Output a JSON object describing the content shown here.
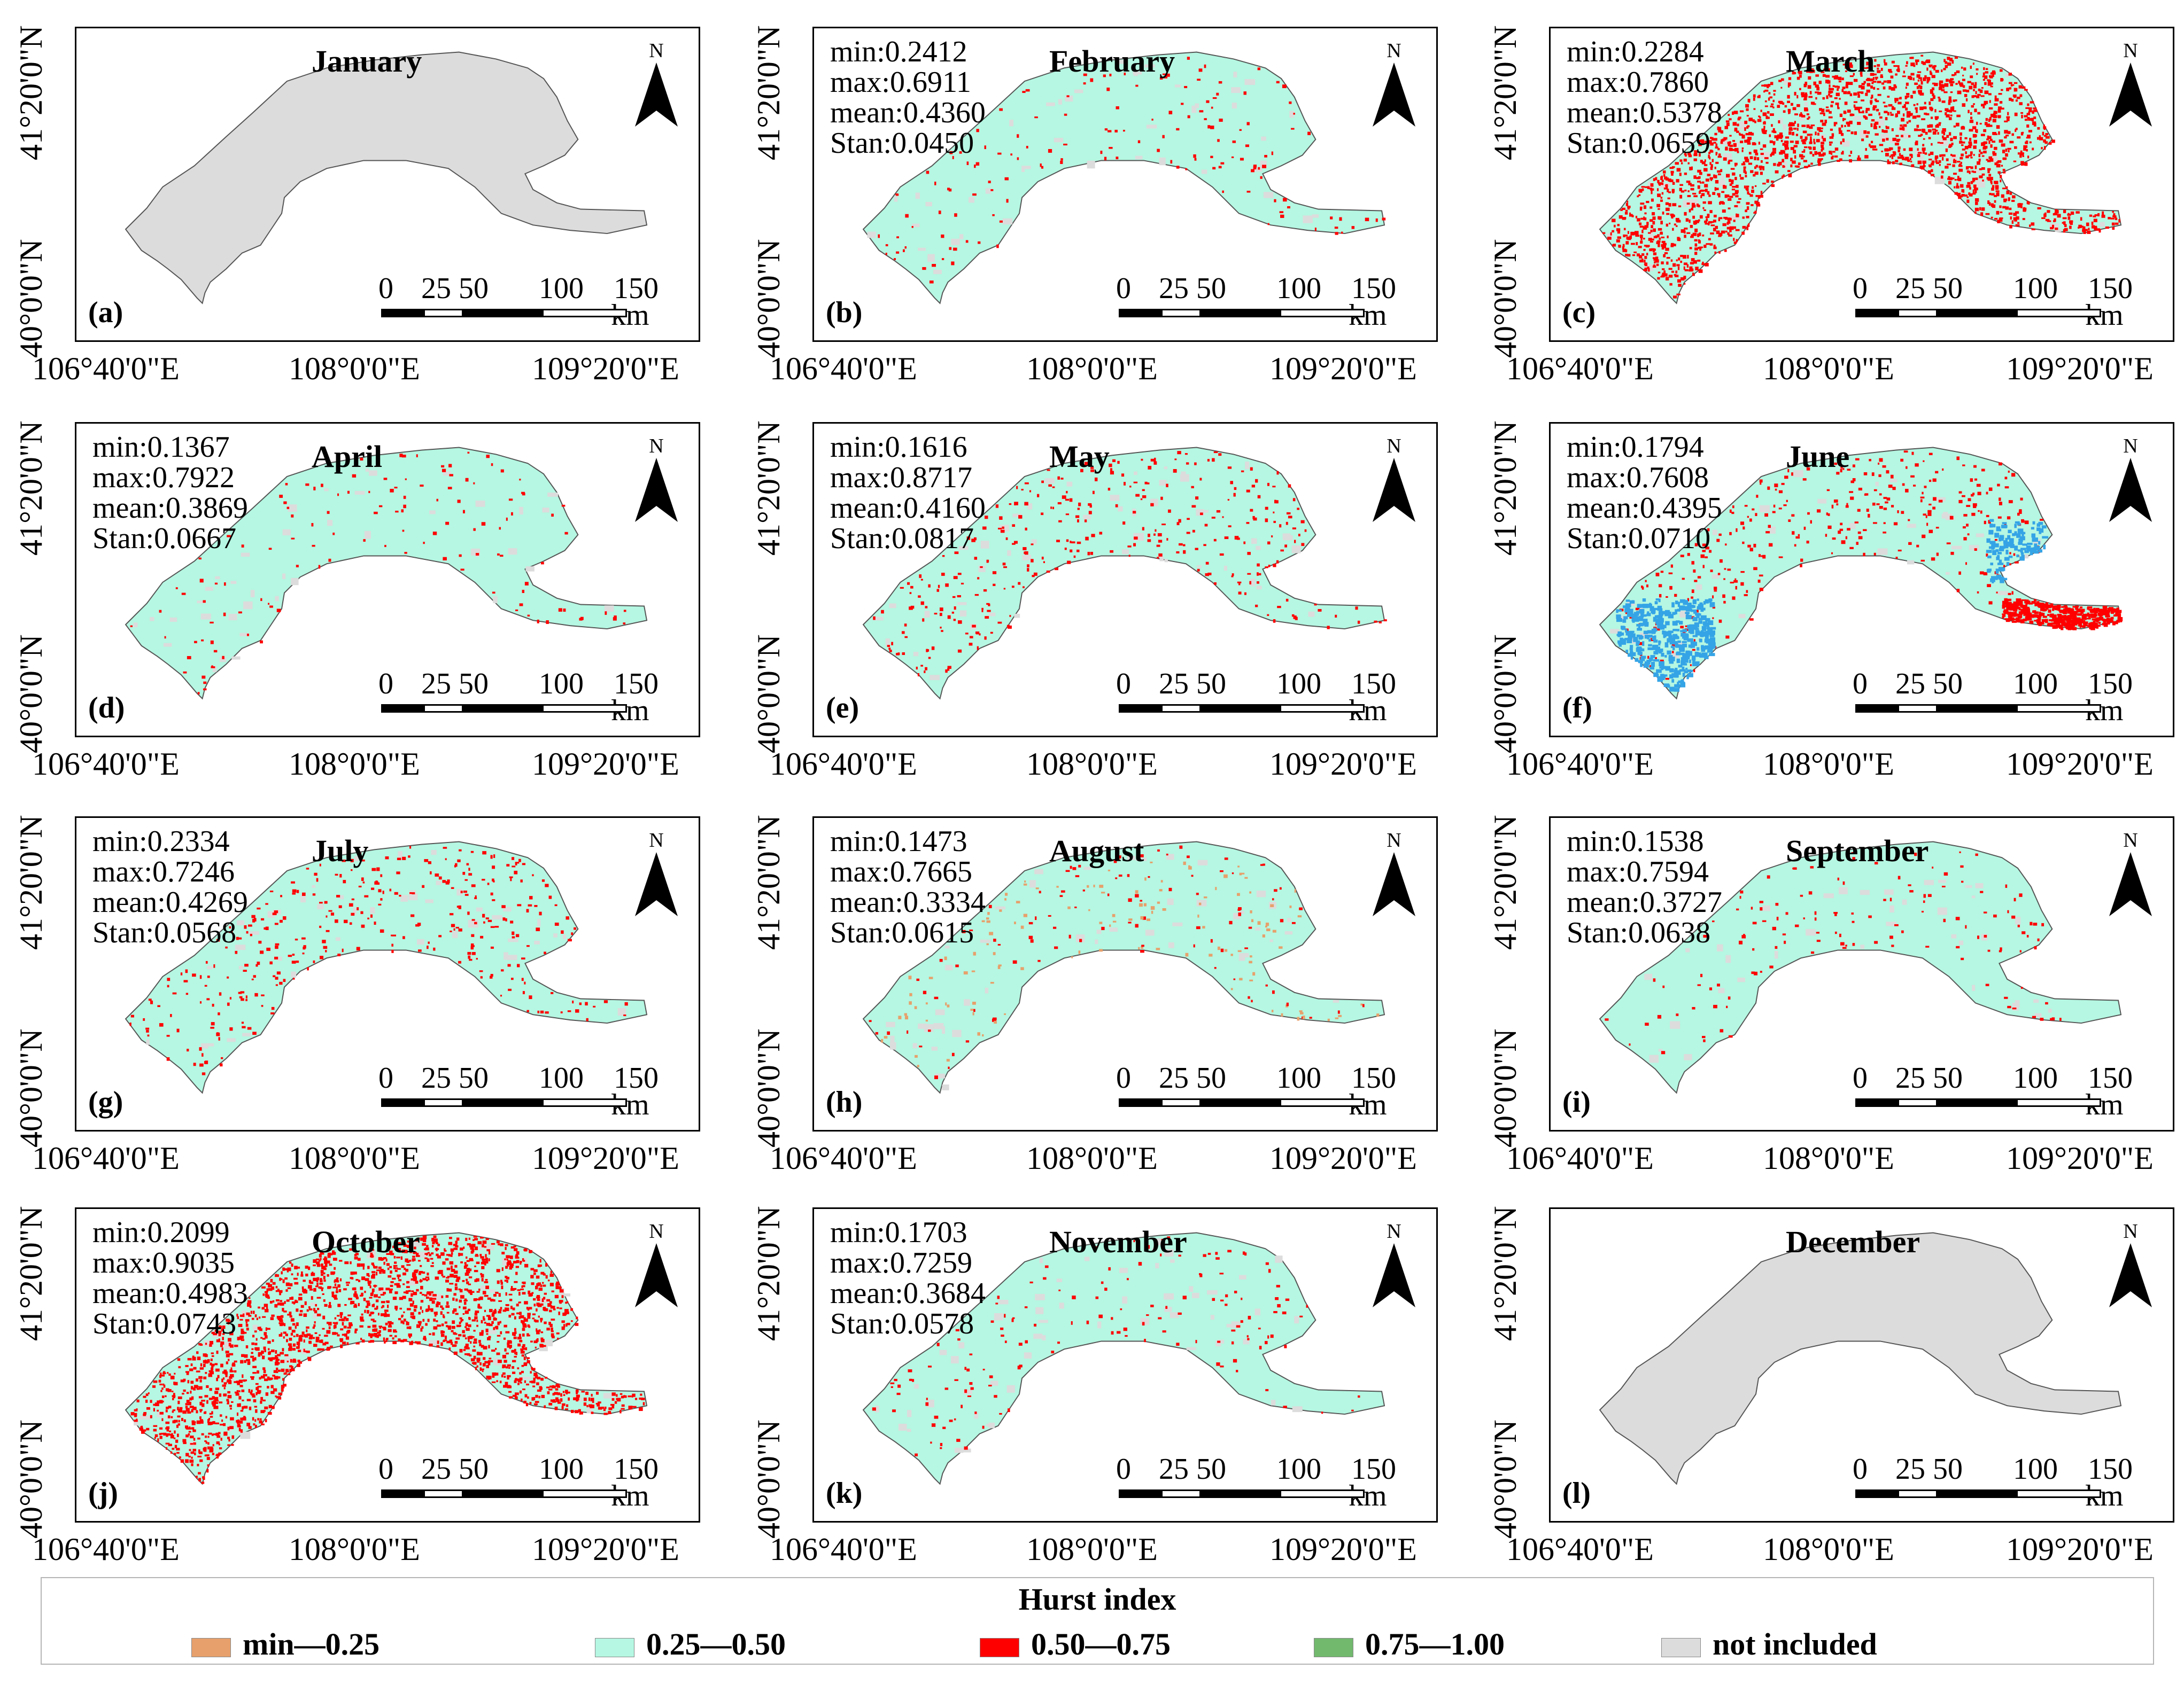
{
  "colors": {
    "low": "#e7a06b",
    "mid": "#b5f7e2",
    "high": "#ff0000",
    "vhigh": "#72b96e",
    "excluded": "#dcdcdc",
    "blue": "#35a4e6"
  },
  "axis": {
    "lat_top": "41°20'0\"N",
    "lat_bottom": "40°0'0\"N",
    "lon_left": "106°40'0\"E",
    "lon_mid": "108°0'0\"E",
    "lon_right": "109°20'0\"E"
  },
  "scalebar": {
    "ticks": [
      "0",
      "25",
      "50",
      "100",
      "150"
    ],
    "unit": "km"
  },
  "north_label": "N",
  "panels": [
    {
      "letter": "(a)",
      "month": "January",
      "fill": "none",
      "stats": null
    },
    {
      "letter": "(b)",
      "month": "February",
      "fill": "sparse",
      "stats": [
        "min:0.2412",
        "max:0.6911",
        "mean:0.4360",
        "Stan:0.0450"
      ]
    },
    {
      "letter": "(c)",
      "month": "March",
      "fill": "dense",
      "stats": [
        "min:0.2284",
        "max:0.7860",
        "mean:0.5378",
        "Stan:0.0659"
      ]
    },
    {
      "letter": "(d)",
      "month": "April",
      "fill": "sparse",
      "stats": [
        "min:0.1367",
        "max:0.7922",
        "mean:0.3869",
        "Stan:0.0667"
      ]
    },
    {
      "letter": "(e)",
      "month": "May",
      "fill": "medium",
      "stats": [
        "min:0.1616",
        "max:0.8717",
        "mean:0.4160",
        "Stan:0.0817"
      ]
    },
    {
      "letter": "(f)",
      "month": "June",
      "fill": "june",
      "stats": [
        "min:0.1794",
        "max:0.7608",
        "mean:0.4395",
        "Stan:0.0710"
      ]
    },
    {
      "letter": "(g)",
      "month": "July",
      "fill": "medium",
      "stats": [
        "min:0.2334",
        "max:0.7246",
        "mean:0.4269",
        "Stan:0.0568"
      ]
    },
    {
      "letter": "(h)",
      "month": "August",
      "fill": "august",
      "stats": [
        "min:0.1473",
        "max:0.7665",
        "mean:0.3334",
        "Stan:0.0615"
      ]
    },
    {
      "letter": "(i)",
      "month": "September",
      "fill": "sparse",
      "stats": [
        "min:0.1538",
        "max:0.7594",
        "mean:0.3727",
        "Stan:0.0638"
      ]
    },
    {
      "letter": "(j)",
      "month": "October",
      "fill": "dense",
      "stats": [
        "min:0.2099",
        "max:0.9035",
        "mean:0.4983",
        "Stan:0.0743"
      ]
    },
    {
      "letter": "(k)",
      "month": "November",
      "fill": "sparse",
      "stats": [
        "min:0.1703",
        "max:0.7259",
        "mean:0.3684",
        "Stan:0.0578"
      ]
    },
    {
      "letter": "(l)",
      "month": "December",
      "fill": "none",
      "stats": null
    }
  ],
  "legend": {
    "title": "Hurst index",
    "items": [
      {
        "label": "min—0.25",
        "color": "#e7a06b"
      },
      {
        "label": "0.25—0.50",
        "color": "#b5f7e2"
      },
      {
        "label": "0.50—0.75",
        "color": "#ff0000"
      },
      {
        "label": "0.75—1.00",
        "color": "#72b96e"
      },
      {
        "label": "not included",
        "color": "#dcdcdc"
      }
    ]
  }
}
